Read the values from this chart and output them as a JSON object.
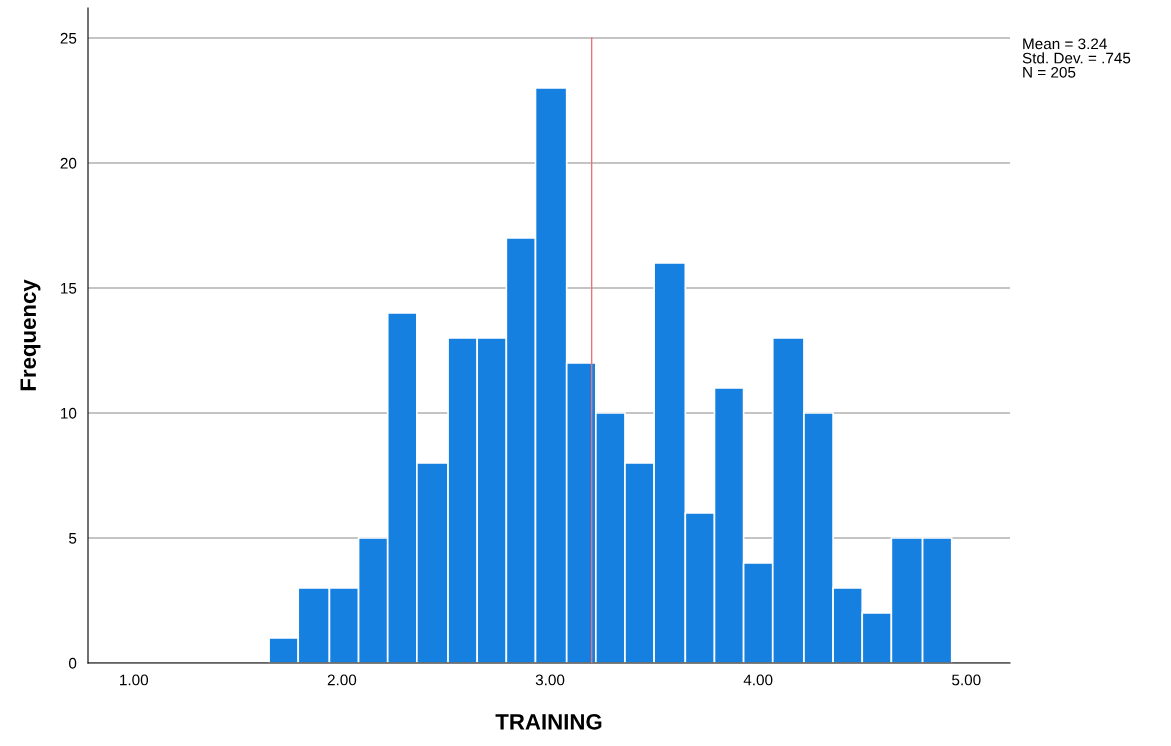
{
  "chart_data": {
    "type": "histogram",
    "xlabel": "TRAINING",
    "ylabel": "Frequency",
    "bins": [
      1.65,
      1.79,
      1.94,
      2.08,
      2.22,
      2.36,
      2.51,
      2.65,
      2.79,
      2.93,
      3.08,
      3.22,
      3.36,
      3.5,
      3.65,
      3.79,
      3.93,
      4.07,
      4.22,
      4.36,
      4.5,
      4.64,
      4.79,
      4.93
    ],
    "values": [
      1,
      3,
      3,
      5,
      14,
      8,
      13,
      13,
      17,
      23,
      12,
      10,
      8,
      16,
      6,
      11,
      4,
      13,
      10,
      3,
      2,
      5,
      5
    ],
    "color": "#1580e0",
    "xlim": [
      0.78,
      5.21
    ],
    "ylim": [
      0,
      26.2
    ],
    "xticks": [
      {
        "value": 1,
        "label": "1.00"
      },
      {
        "value": 2,
        "label": "2.00"
      },
      {
        "value": 3,
        "label": "3.00"
      },
      {
        "value": 4,
        "label": "4.00"
      },
      {
        "value": 5,
        "label": "5.00"
      }
    ],
    "yticks": [
      0,
      5,
      10,
      15,
      20,
      25
    ],
    "grid": "y",
    "ref_lines": [
      {
        "axis": "x",
        "value": 3.2,
        "color": "#e8737a"
      }
    ],
    "annotations": [
      "Mean = 3.24\nStd. Dev. = .745\nN = 205"
    ]
  }
}
